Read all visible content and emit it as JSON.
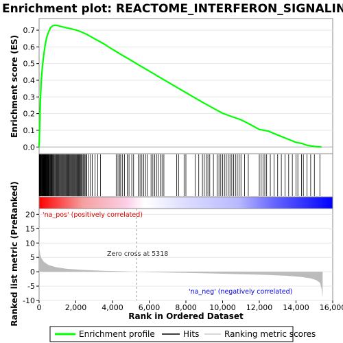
{
  "chart_data": {
    "type": "line",
    "title": "Enrichment plot: REACTOME_INTERFERON_SIGNALING",
    "es_panel": {
      "ylabel": "Enrichment score (ES)",
      "ylim": [
        -0.04,
        0.77
      ],
      "yticks": [
        "0.0",
        "0.1",
        "0.2",
        "0.3",
        "0.4",
        "0.5",
        "0.6",
        "0.7"
      ],
      "ytick_values": [
        0.0,
        0.1,
        0.2,
        0.3,
        0.4,
        0.5,
        0.6,
        0.7
      ],
      "series": [
        {
          "name": "Enrichment profile",
          "color": "#00ff00",
          "points": [
            [
              0,
              0.0
            ],
            [
              30,
              0.12
            ],
            [
              70,
              0.28
            ],
            [
              120,
              0.4
            ],
            [
              180,
              0.48
            ],
            [
              250,
              0.55
            ],
            [
              330,
              0.61
            ],
            [
              420,
              0.66
            ],
            [
              520,
              0.69
            ],
            [
              620,
              0.715
            ],
            [
              720,
              0.725
            ],
            [
              850,
              0.73
            ],
            [
              1000,
              0.728
            ],
            [
              1200,
              0.722
            ],
            [
              1500,
              0.714
            ],
            [
              1800,
              0.707
            ],
            [
              2100,
              0.698
            ],
            [
              2300,
              0.69
            ],
            [
              2600,
              0.675
            ],
            [
              3000,
              0.65
            ],
            [
              3500,
              0.62
            ],
            [
              4000,
              0.585
            ],
            [
              4500,
              0.552
            ],
            [
              5000,
              0.52
            ],
            [
              5500,
              0.487
            ],
            [
              6000,
              0.455
            ],
            [
              6500,
              0.422
            ],
            [
              7000,
              0.39
            ],
            [
              7500,
              0.358
            ],
            [
              8000,
              0.326
            ],
            [
              8500,
              0.294
            ],
            [
              9000,
              0.262
            ],
            [
              9500,
              0.232
            ],
            [
              10000,
              0.202
            ],
            [
              10500,
              0.182
            ],
            [
              11000,
              0.163
            ],
            [
              11500,
              0.135
            ],
            [
              12000,
              0.105
            ],
            [
              12500,
              0.095
            ],
            [
              13000,
              0.072
            ],
            [
              13500,
              0.05
            ],
            [
              14000,
              0.028
            ],
            [
              14300,
              0.022
            ],
            [
              14600,
              0.01
            ],
            [
              15000,
              0.003
            ],
            [
              15400,
              0.0
            ]
          ]
        }
      ]
    },
    "hits": {
      "ranks": [
        10,
        30,
        50,
        70,
        90,
        110,
        130,
        150,
        170,
        190,
        210,
        230,
        250,
        270,
        290,
        310,
        330,
        350,
        370,
        390,
        410,
        430,
        450,
        470,
        490,
        520,
        550,
        580,
        610,
        640,
        670,
        700,
        730,
        760,
        790,
        830,
        870,
        910,
        950,
        990,
        1030,
        1070,
        1110,
        1150,
        1190,
        1230,
        1270,
        1310,
        1350,
        1390,
        1430,
        1470,
        1510,
        1550,
        1590,
        1630,
        1670,
        1710,
        1750,
        1790,
        1830,
        1870,
        1910,
        1950,
        1990,
        2030,
        2070,
        2110,
        2150,
        2190,
        2230,
        2270,
        2310,
        2350,
        2400,
        2450,
        2500,
        2550,
        2600,
        2700,
        2800,
        2900,
        3050,
        3200,
        3350,
        4200,
        4300,
        4400,
        4450,
        4550,
        4650,
        4800,
        4900,
        5050,
        5150,
        5400,
        5500,
        5600,
        5700,
        5800,
        5900,
        6100,
        6200,
        6300,
        6400,
        6500,
        6600,
        6700,
        6800,
        7500,
        7600,
        7900,
        8000,
        8500,
        8700,
        8900,
        9000,
        9100,
        9200,
        9300,
        9500,
        9700,
        9800,
        9900,
        10000,
        10100,
        10200,
        10300,
        10400,
        10500,
        10600,
        10700,
        10800,
        10900,
        11000,
        11200,
        11400,
        12000,
        12100,
        12200,
        12300,
        12400,
        12600,
        12800,
        13000,
        13200,
        13400,
        13600,
        13800,
        14000,
        14100,
        14300,
        14400,
        14600,
        14800,
        15000,
        15300
      ],
      "color": "#000000"
    },
    "rank_bar": {
      "colors": [
        "#ff0000",
        "#ffffff",
        "#0000ff"
      ]
    },
    "metric_panel": {
      "ylabel": "Ranked list metric (PreRanked)",
      "ylim": [
        -10,
        22
      ],
      "yticks": [
        "20",
        "15",
        "10",
        "5",
        "0",
        "-5",
        "-10"
      ],
      "ytick_values": [
        20,
        15,
        10,
        5,
        0,
        -5,
        -10
      ],
      "series": [
        {
          "name": "Ranking metric scores",
          "color": "#bbbbbb",
          "points": [
            [
              0,
              12
            ],
            [
              20,
              8
            ],
            [
              60,
              6
            ],
            [
              120,
              4.8
            ],
            [
              250,
              3.5
            ],
            [
              500,
              2.4
            ],
            [
              900,
              1.6
            ],
            [
              1500,
              1.0
            ],
            [
              2500,
              0.6
            ],
            [
              3500,
              0.35
            ],
            [
              4500,
              0.18
            ],
            [
              5318,
              0
            ],
            [
              6500,
              -0.2
            ],
            [
              8000,
              -0.4
            ],
            [
              9500,
              -0.6
            ],
            [
              11000,
              -0.85
            ],
            [
              12500,
              -1.1
            ],
            [
              13500,
              -1.4
            ],
            [
              14300,
              -1.8
            ],
            [
              14800,
              -2.3
            ],
            [
              15100,
              -2.9
            ],
            [
              15300,
              -3.8
            ],
            [
              15400,
              -6
            ],
            [
              15450,
              -9
            ]
          ]
        }
      ],
      "annotations": {
        "pos": "'na_pos' (positively correlated)",
        "neg": "'na_neg' (negatively correlated)",
        "zero": "Zero cross at 5318"
      },
      "zero_cross": 5318,
      "pos_color": "#dd0000",
      "neg_color": "#0000dd"
    },
    "x_axis": {
      "xlabel": "Rank in Ordered Dataset",
      "xlim": [
        0,
        16000
      ],
      "xticks": [
        "0",
        "2,000",
        "4,000",
        "6,000",
        "8,000",
        "10,000",
        "12,000",
        "14,000",
        "16,000"
      ],
      "xtick_values": [
        0,
        2000,
        4000,
        6000,
        8000,
        10000,
        12000,
        14000,
        16000
      ]
    },
    "legend": {
      "position": "bottom",
      "items": [
        {
          "label": "Enrichment profile",
          "color": "#00ff00"
        },
        {
          "label": "Hits",
          "color": "#000000"
        },
        {
          "label": "Ranking metric scores",
          "color": "#cccccc"
        }
      ]
    }
  }
}
